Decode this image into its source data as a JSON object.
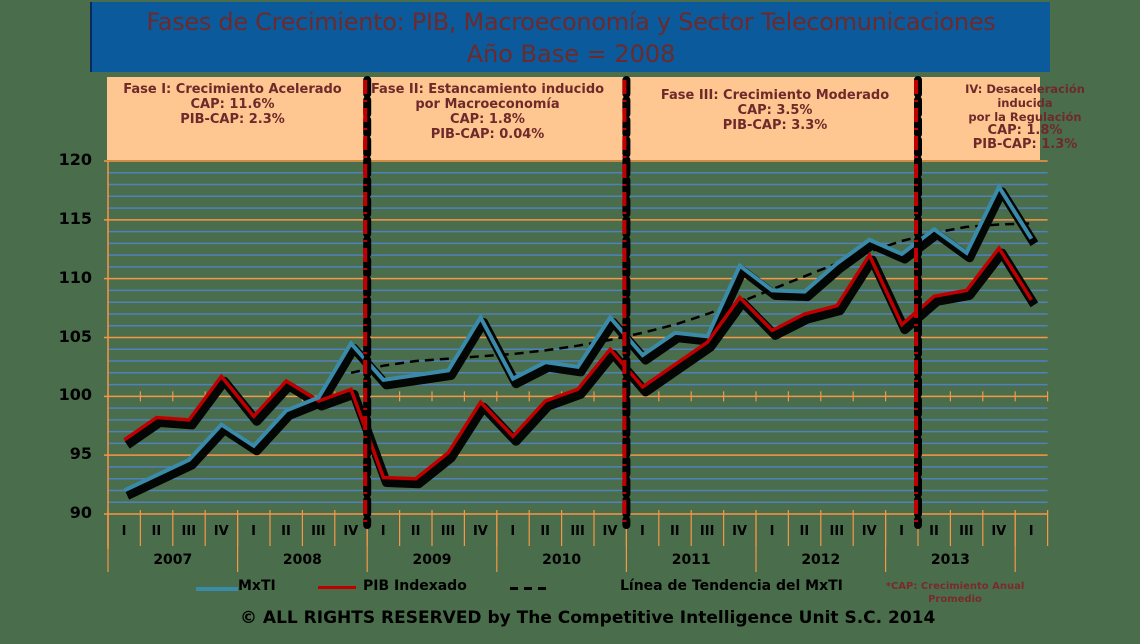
{
  "title": {
    "line1": "Fases de Crecimiento: PIB, Macroeconomía y Sector Telecomunicaciones",
    "line2": "Año Base = 2008"
  },
  "phases": [
    {
      "name": "Fase I: Crecimiento Acelerado",
      "name2": "",
      "cap": "CAP: 11.6%",
      "pib_cap": "PIB-CAP: 2.3%"
    },
    {
      "name": "Fase II: Estancamiento inducido",
      "name2": "por Macroeconomía",
      "cap": "CAP: 1.8%",
      "pib_cap": "PIB-CAP: 0.04%"
    },
    {
      "name": "Fase III: Crecimiento Moderado",
      "name2": "",
      "cap": "CAP: 3.5%",
      "pib_cap": "PIB-CAP: 3.3%"
    },
    {
      "name": "IV: Desaceleración inducida",
      "name2": "por la Regulación",
      "cap": "CAP: 1.8%",
      "pib_cap": "PIB-CAP: 1.3%"
    }
  ],
  "legend": {
    "mxti": "MxTI",
    "pib": "PIB Indexado",
    "trend": "Línea de Tendencia del MxTI"
  },
  "footnote": {
    "line1": "*CAP: Crecimiento Anual",
    "line2": "Promedio"
  },
  "footer": "© ALL RIGHTS RESERVED by The Competitive Intelligence Unit S.C. 2014",
  "colors": {
    "mxti": "#3a8aaa",
    "pib": "#c00000",
    "trend": "#000000",
    "grid_orange": "#f79646",
    "grid_blue": "#4f81bd",
    "phase_band": "#fec690",
    "title_bg": "#0a5a9c",
    "title_text": "#6e2a2a"
  },
  "chart_data": {
    "type": "line",
    "title": "Fases de Crecimiento: PIB, Macroeconomía y Sector Telecomunicaciones — Año Base = 2008",
    "xlabel": "",
    "ylabel": "",
    "ylim": [
      90,
      120
    ],
    "yticks": [
      90,
      95,
      100,
      105,
      110,
      115,
      120
    ],
    "grid": true,
    "legend_position": "bottom",
    "quarters": [
      "I",
      "II",
      "III",
      "IV",
      "I",
      "II",
      "III",
      "IV",
      "I",
      "II",
      "III",
      "IV",
      "I",
      "II",
      "III",
      "IV",
      "I",
      "II",
      "III",
      "IV",
      "I",
      "II",
      "III",
      "IV",
      "I",
      "II",
      "III",
      "IV",
      "I"
    ],
    "years": [
      {
        "label": "2007",
        "start": 0,
        "span": 4
      },
      {
        "label": "2008",
        "start": 4,
        "span": 4
      },
      {
        "label": "2009",
        "start": 8,
        "span": 4
      },
      {
        "label": "2010",
        "start": 12,
        "span": 4
      },
      {
        "label": "2011",
        "start": 16,
        "span": 4
      },
      {
        "label": "2012",
        "start": 20,
        "span": 4
      },
      {
        "label": "2013",
        "start": 24,
        "span": 4
      }
    ],
    "phase_boundaries_after_index": [
      7,
      15,
      24
    ],
    "series": [
      {
        "name": "MxTI",
        "values": [
          92.0,
          93.3,
          94.6,
          97.6,
          95.8,
          98.8,
          99.9,
          104.5,
          101.4,
          101.8,
          102.2,
          106.7,
          101.5,
          102.9,
          102.5,
          106.7,
          103.5,
          105.4,
          105.1,
          111.1,
          109.0,
          108.9,
          111.3,
          113.3,
          112.1,
          114.2,
          112.2,
          117.8,
          113.4
        ]
      },
      {
        "name": "PIB Indexado",
        "values": [
          96.3,
          98.2,
          98.0,
          101.7,
          98.3,
          101.3,
          99.6,
          100.6,
          93.1,
          93.0,
          95.2,
          99.5,
          96.6,
          99.6,
          100.6,
          104.0,
          100.8,
          102.7,
          104.6,
          108.4,
          105.6,
          107.0,
          107.7,
          112.0,
          106.1,
          108.5,
          109.0,
          112.6,
          108.2
        ]
      },
      {
        "name": "Línea de Tendencia del MxTI",
        "start_index": 7,
        "values": [
          102.0,
          102.6,
          103.0,
          103.2,
          103.4,
          103.6,
          103.9,
          104.3,
          104.8,
          105.4,
          106.1,
          107.0,
          108.0,
          109.1,
          110.2,
          111.3,
          112.3,
          113.2,
          113.9,
          114.4,
          114.6,
          114.7
        ]
      }
    ]
  }
}
